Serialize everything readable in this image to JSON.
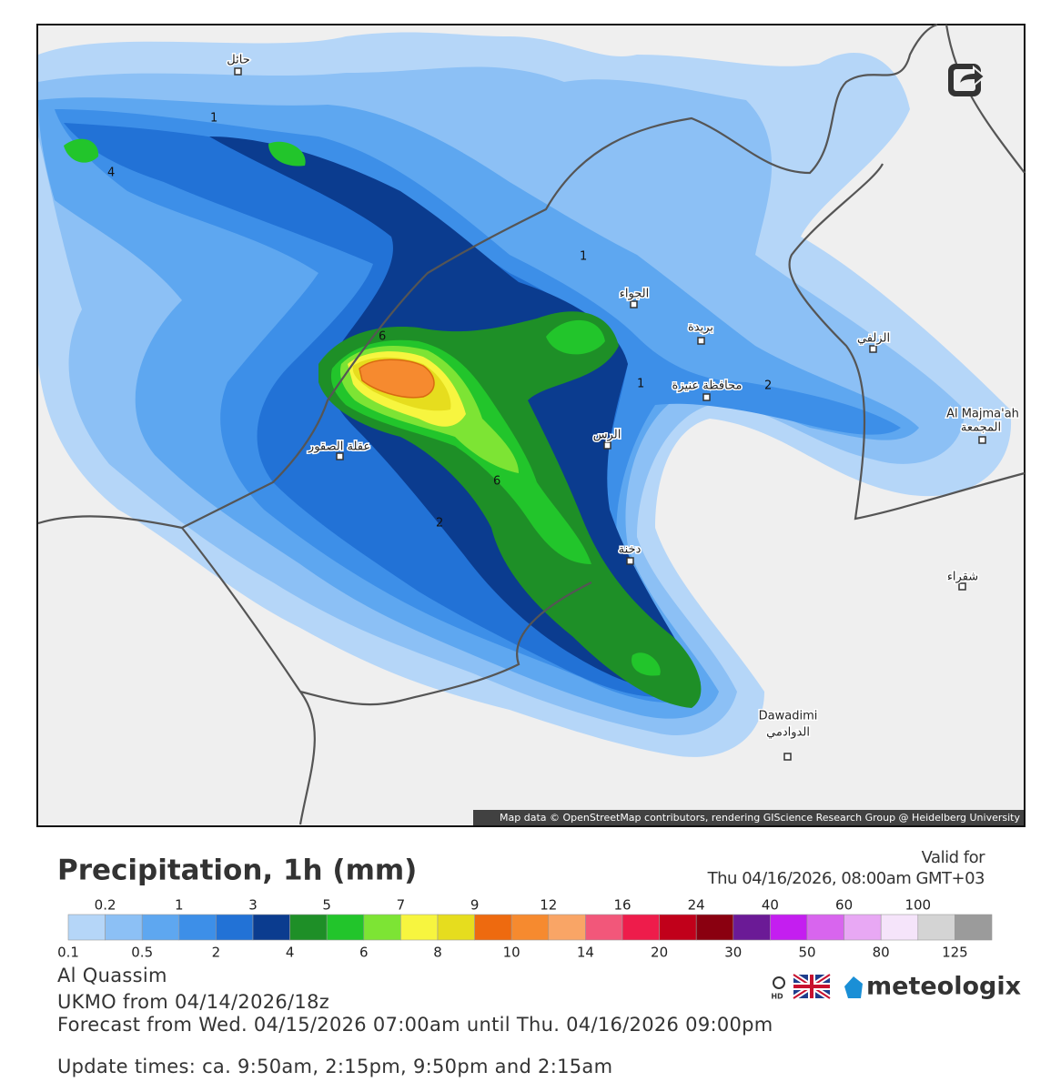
{
  "map": {
    "cities": [
      "حائل",
      "الجواء",
      "بريدة",
      "الزلفي",
      "محافظة عنيزة",
      "Al Majma'ah",
      "المجمعة",
      "الرس",
      "عقلة الصقور",
      "دخنة",
      "شقراء",
      "Dawadimi",
      "الدوادمي"
    ],
    "contour_labels": [
      "1",
      "4",
      "1",
      "6",
      "1",
      "2",
      "6",
      "2"
    ],
    "attribution": "Map data © OpenStreetMap contributors, rendering GIScience Research Group @ Heidelberg University"
  },
  "header": {
    "title": "Precipitation, 1h (mm)",
    "valid_label": "Valid for",
    "valid_time": "Thu 04/16/2026, 08:00am GMT+03"
  },
  "legend": {
    "upper_labels": [
      "0.2",
      "1",
      "3",
      "5",
      "7",
      "9",
      "12",
      "16",
      "24",
      "40",
      "60",
      "100"
    ],
    "lower_labels": [
      "0.1",
      "0.5",
      "2",
      "4",
      "6",
      "8",
      "10",
      "14",
      "20",
      "30",
      "50",
      "80",
      "125"
    ],
    "colors": [
      "#b5d6f8",
      "#8cc0f5",
      "#5ea7f0",
      "#3d8fe8",
      "#2272d6",
      "#0b3c8f",
      "#1e8f27",
      "#22c52b",
      "#7de434",
      "#f7f53f",
      "#e6dd1e",
      "#ee6a0f",
      "#f68a2f",
      "#f9a566",
      "#f2577a",
      "#ee1c4b",
      "#c1001a",
      "#8a0010",
      "#6b1a96",
      "#c41ef0",
      "#d865ee",
      "#e8a8f4",
      "#f5e4fa",
      "#d4d4d4",
      "#9b9b9b"
    ]
  },
  "info": {
    "region": "Al Quassim",
    "model": "UKMO from 04/14/2026/18z",
    "forecast": "Forecast from Wed. 04/15/2026 07:00am until Thu. 04/16/2026 09:00pm",
    "updates": "Update times: ca. 9:50am, 2:15pm, 9:50pm and 2:15am"
  },
  "brand": {
    "hd": "HD",
    "name": "meteologix"
  }
}
